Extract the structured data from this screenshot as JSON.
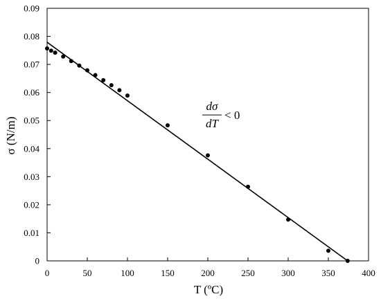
{
  "chart_data": {
    "type": "scatter",
    "xlabel": "T (ºC)",
    "ylabel": "σ (N/m)",
    "xlim": [
      0,
      400
    ],
    "ylim": [
      0,
      0.09
    ],
    "x_ticks": [
      "0",
      "50",
      "100",
      "150",
      "200",
      "250",
      "300",
      "350",
      "400"
    ],
    "y_ticks": [
      "0",
      "0.01",
      "0.02",
      "0.03",
      "0.04",
      "0.05",
      "0.06",
      "0.07",
      "0.08",
      "0.09"
    ],
    "grid": false,
    "points": [
      {
        "x": 0,
        "y": 0.0757
      },
      {
        "x": 5,
        "y": 0.0749
      },
      {
        "x": 10,
        "y": 0.0742
      },
      {
        "x": 20,
        "y": 0.0728
      },
      {
        "x": 30,
        "y": 0.0712
      },
      {
        "x": 40,
        "y": 0.0696
      },
      {
        "x": 50,
        "y": 0.0679
      },
      {
        "x": 60,
        "y": 0.0662
      },
      {
        "x": 70,
        "y": 0.0644
      },
      {
        "x": 80,
        "y": 0.0626
      },
      {
        "x": 90,
        "y": 0.0608
      },
      {
        "x": 100,
        "y": 0.0589
      },
      {
        "x": 150,
        "y": 0.0483
      },
      {
        "x": 200,
        "y": 0.0376
      },
      {
        "x": 250,
        "y": 0.0264
      },
      {
        "x": 300,
        "y": 0.0147
      },
      {
        "x": 350,
        "y": 0.0036
      },
      {
        "x": 374,
        "y": 0
      }
    ],
    "trendline": {
      "x": [
        0,
        374
      ],
      "y": [
        0.0779,
        0
      ]
    },
    "annotation": {
      "numerator": "dσ",
      "denominator": "dT",
      "relation": "< 0",
      "x": 200,
      "y": 0.052
    }
  }
}
